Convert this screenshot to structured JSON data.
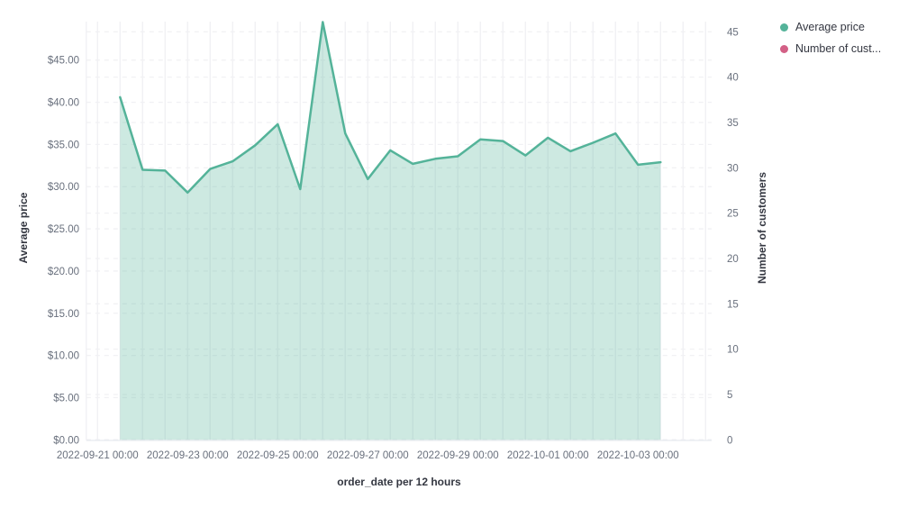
{
  "chart_data": {
    "type": "area",
    "title": "",
    "xlabel": "order_date per 12 hours",
    "ylabel_left": "Average price",
    "ylabel_right": "Number of customers",
    "x_axis": {
      "interval": "12 hours",
      "tick_labels": [
        "2022-09-21 00:00",
        "2022-09-23 00:00",
        "2022-09-25 00:00",
        "2022-09-27 00:00",
        "2022-09-29 00:00",
        "2022-10-01 00:00",
        "2022-10-03 00:00"
      ]
    },
    "y_axis_left": {
      "tick_values": [
        0,
        5,
        10,
        15,
        20,
        25,
        30,
        35,
        40,
        45
      ],
      "tick_labels": [
        "$0.00",
        "$5.00",
        "$10.00",
        "$15.00",
        "$20.00",
        "$25.00",
        "$30.00",
        "$35.00",
        "$40.00",
        "$45.00"
      ],
      "range": [
        0,
        49.6
      ]
    },
    "y_axis_right": {
      "tick_values": [
        0,
        5,
        10,
        15,
        20,
        25,
        30,
        35,
        40,
        45
      ],
      "tick_labels": [
        "0",
        "5",
        "10",
        "15",
        "20",
        "25",
        "30",
        "35",
        "40",
        "45"
      ],
      "range": [
        0,
        45
      ]
    },
    "grid": {
      "vertical": "solid",
      "horizontal": "dashed"
    },
    "legend": {
      "position": "top-right",
      "items": [
        {
          "label": "Average price",
          "color": "#54B399"
        },
        {
          "label": "Number of cust...",
          "color": "#D36086"
        }
      ]
    },
    "series": [
      {
        "name": "Average price",
        "axis": "left",
        "color": "#54B399",
        "fill_opacity": 0.29,
        "x": [
          "2022-09-21 12:00",
          "2022-09-22 00:00",
          "2022-09-22 12:00",
          "2022-09-23 00:00",
          "2022-09-23 12:00",
          "2022-09-24 00:00",
          "2022-09-24 12:00",
          "2022-09-25 00:00",
          "2022-09-25 12:00",
          "2022-09-26 00:00",
          "2022-09-26 12:00",
          "2022-09-27 00:00",
          "2022-09-27 12:00",
          "2022-09-28 00:00",
          "2022-09-28 12:00",
          "2022-09-29 00:00",
          "2022-09-29 12:00",
          "2022-09-30 00:00",
          "2022-09-30 12:00",
          "2022-10-01 00:00",
          "2022-10-01 12:00",
          "2022-10-02 00:00",
          "2022-10-02 12:00",
          "2022-10-03 00:00",
          "2022-10-03 12:00"
        ],
        "values": [
          40.6,
          32.0,
          31.9,
          29.3,
          32.1,
          33.0,
          34.9,
          37.4,
          29.7,
          49.5,
          36.3,
          30.9,
          34.3,
          32.7,
          33.3,
          33.6,
          35.6,
          35.4,
          33.7,
          35.8,
          34.2,
          35.2,
          36.3,
          32.6,
          32.9
        ]
      },
      {
        "name": "Number of customers",
        "axis": "right",
        "color": "#D36086",
        "values": []
      }
    ]
  }
}
